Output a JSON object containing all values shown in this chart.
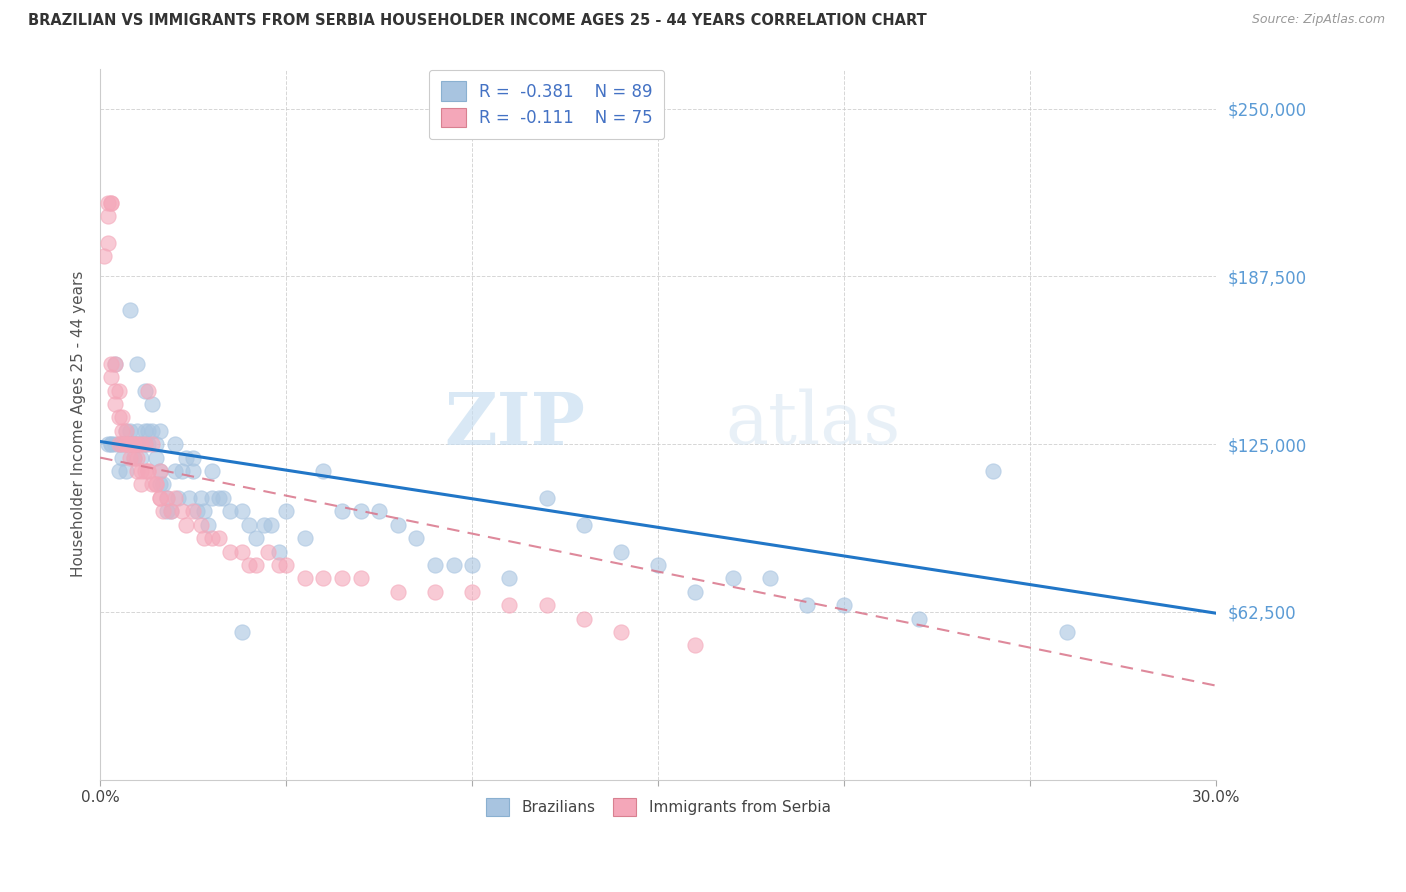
{
  "title": "BRAZILIAN VS IMMIGRANTS FROM SERBIA HOUSEHOLDER INCOME AGES 25 - 44 YEARS CORRELATION CHART",
  "source": "Source: ZipAtlas.com",
  "ylabel": "Householder Income Ages 25 - 44 years",
  "xlim": [
    0.0,
    0.3
  ],
  "ylim": [
    0,
    265000
  ],
  "yticks": [
    62500,
    125000,
    187500,
    250000
  ],
  "ytick_labels": [
    "$62,500",
    "$125,000",
    "$187,500",
    "$250,000"
  ],
  "xticks": [
    0.0,
    0.05,
    0.1,
    0.15,
    0.2,
    0.25,
    0.3
  ],
  "xtick_labels": [
    "0.0%",
    "",
    "",
    "",
    "",
    "",
    "30.0%"
  ],
  "watermark_zip": "ZIP",
  "watermark_atlas": "atlas",
  "brazil_R": -0.381,
  "brazil_N": 89,
  "serbia_R": -0.111,
  "serbia_N": 75,
  "brazil_color": "#a8c4e0",
  "serbia_color": "#f4a7b9",
  "brazil_line_color": "#2176c7",
  "serbia_line_color": "#d9748a",
  "brazil_line_x": [
    0.0,
    0.3
  ],
  "brazil_line_y": [
    126000,
    62000
  ],
  "serbia_line_x": [
    0.0,
    0.3
  ],
  "serbia_line_y": [
    120000,
    35000
  ],
  "brazil_scatter_x": [
    0.002,
    0.003,
    0.003,
    0.004,
    0.004,
    0.005,
    0.005,
    0.006,
    0.006,
    0.007,
    0.007,
    0.007,
    0.008,
    0.008,
    0.008,
    0.009,
    0.009,
    0.01,
    0.01,
    0.01,
    0.011,
    0.011,
    0.012,
    0.012,
    0.013,
    0.013,
    0.014,
    0.015,
    0.015,
    0.016,
    0.016,
    0.017,
    0.018,
    0.018,
    0.019,
    0.02,
    0.021,
    0.022,
    0.023,
    0.024,
    0.025,
    0.026,
    0.027,
    0.028,
    0.029,
    0.03,
    0.032,
    0.033,
    0.035,
    0.038,
    0.04,
    0.042,
    0.044,
    0.046,
    0.05,
    0.055,
    0.06,
    0.065,
    0.07,
    0.075,
    0.08,
    0.085,
    0.09,
    0.095,
    0.1,
    0.11,
    0.12,
    0.13,
    0.14,
    0.15,
    0.16,
    0.17,
    0.18,
    0.19,
    0.2,
    0.22,
    0.24,
    0.26,
    0.008,
    0.01,
    0.012,
    0.014,
    0.016,
    0.02,
    0.025,
    0.03,
    0.038,
    0.048
  ],
  "brazil_scatter_y": [
    125000,
    125000,
    125000,
    125000,
    155000,
    125000,
    115000,
    125000,
    120000,
    115000,
    125000,
    130000,
    125000,
    125000,
    130000,
    125000,
    120000,
    125000,
    125000,
    130000,
    125000,
    120000,
    125000,
    130000,
    130000,
    125000,
    130000,
    125000,
    120000,
    115000,
    110000,
    110000,
    100000,
    105000,
    100000,
    115000,
    105000,
    115000,
    120000,
    105000,
    115000,
    100000,
    105000,
    100000,
    95000,
    105000,
    105000,
    105000,
    100000,
    100000,
    95000,
    90000,
    95000,
    95000,
    100000,
    90000,
    115000,
    100000,
    100000,
    100000,
    95000,
    90000,
    80000,
    80000,
    80000,
    75000,
    105000,
    95000,
    85000,
    80000,
    70000,
    75000,
    75000,
    65000,
    65000,
    60000,
    115000,
    55000,
    175000,
    155000,
    145000,
    140000,
    130000,
    125000,
    120000,
    115000,
    55000,
    85000
  ],
  "serbia_scatter_x": [
    0.001,
    0.002,
    0.002,
    0.003,
    0.003,
    0.003,
    0.004,
    0.004,
    0.005,
    0.005,
    0.006,
    0.006,
    0.007,
    0.007,
    0.008,
    0.008,
    0.009,
    0.009,
    0.01,
    0.01,
    0.011,
    0.011,
    0.012,
    0.013,
    0.013,
    0.014,
    0.015,
    0.016,
    0.016,
    0.017,
    0.018,
    0.019,
    0.02,
    0.022,
    0.023,
    0.025,
    0.027,
    0.028,
    0.03,
    0.032,
    0.035,
    0.038,
    0.04,
    0.042,
    0.045,
    0.048,
    0.05,
    0.055,
    0.06,
    0.065,
    0.07,
    0.08,
    0.09,
    0.1,
    0.11,
    0.12,
    0.13,
    0.14,
    0.16,
    0.002,
    0.003,
    0.004,
    0.005,
    0.006,
    0.007,
    0.008,
    0.009,
    0.01,
    0.011,
    0.012,
    0.013,
    0.014,
    0.015,
    0.016
  ],
  "serbia_scatter_y": [
    195000,
    210000,
    200000,
    155000,
    150000,
    215000,
    145000,
    140000,
    145000,
    135000,
    130000,
    135000,
    125000,
    130000,
    125000,
    120000,
    125000,
    120000,
    115000,
    120000,
    115000,
    110000,
    115000,
    115000,
    145000,
    125000,
    110000,
    115000,
    105000,
    100000,
    105000,
    100000,
    105000,
    100000,
    95000,
    100000,
    95000,
    90000,
    90000,
    90000,
    85000,
    85000,
    80000,
    80000,
    85000,
    80000,
    80000,
    75000,
    75000,
    75000,
    75000,
    70000,
    70000,
    70000,
    65000,
    65000,
    60000,
    55000,
    50000,
    215000,
    215000,
    155000,
    125000,
    125000,
    125000,
    125000,
    125000,
    125000,
    125000,
    125000,
    115000,
    110000,
    110000,
    105000
  ]
}
